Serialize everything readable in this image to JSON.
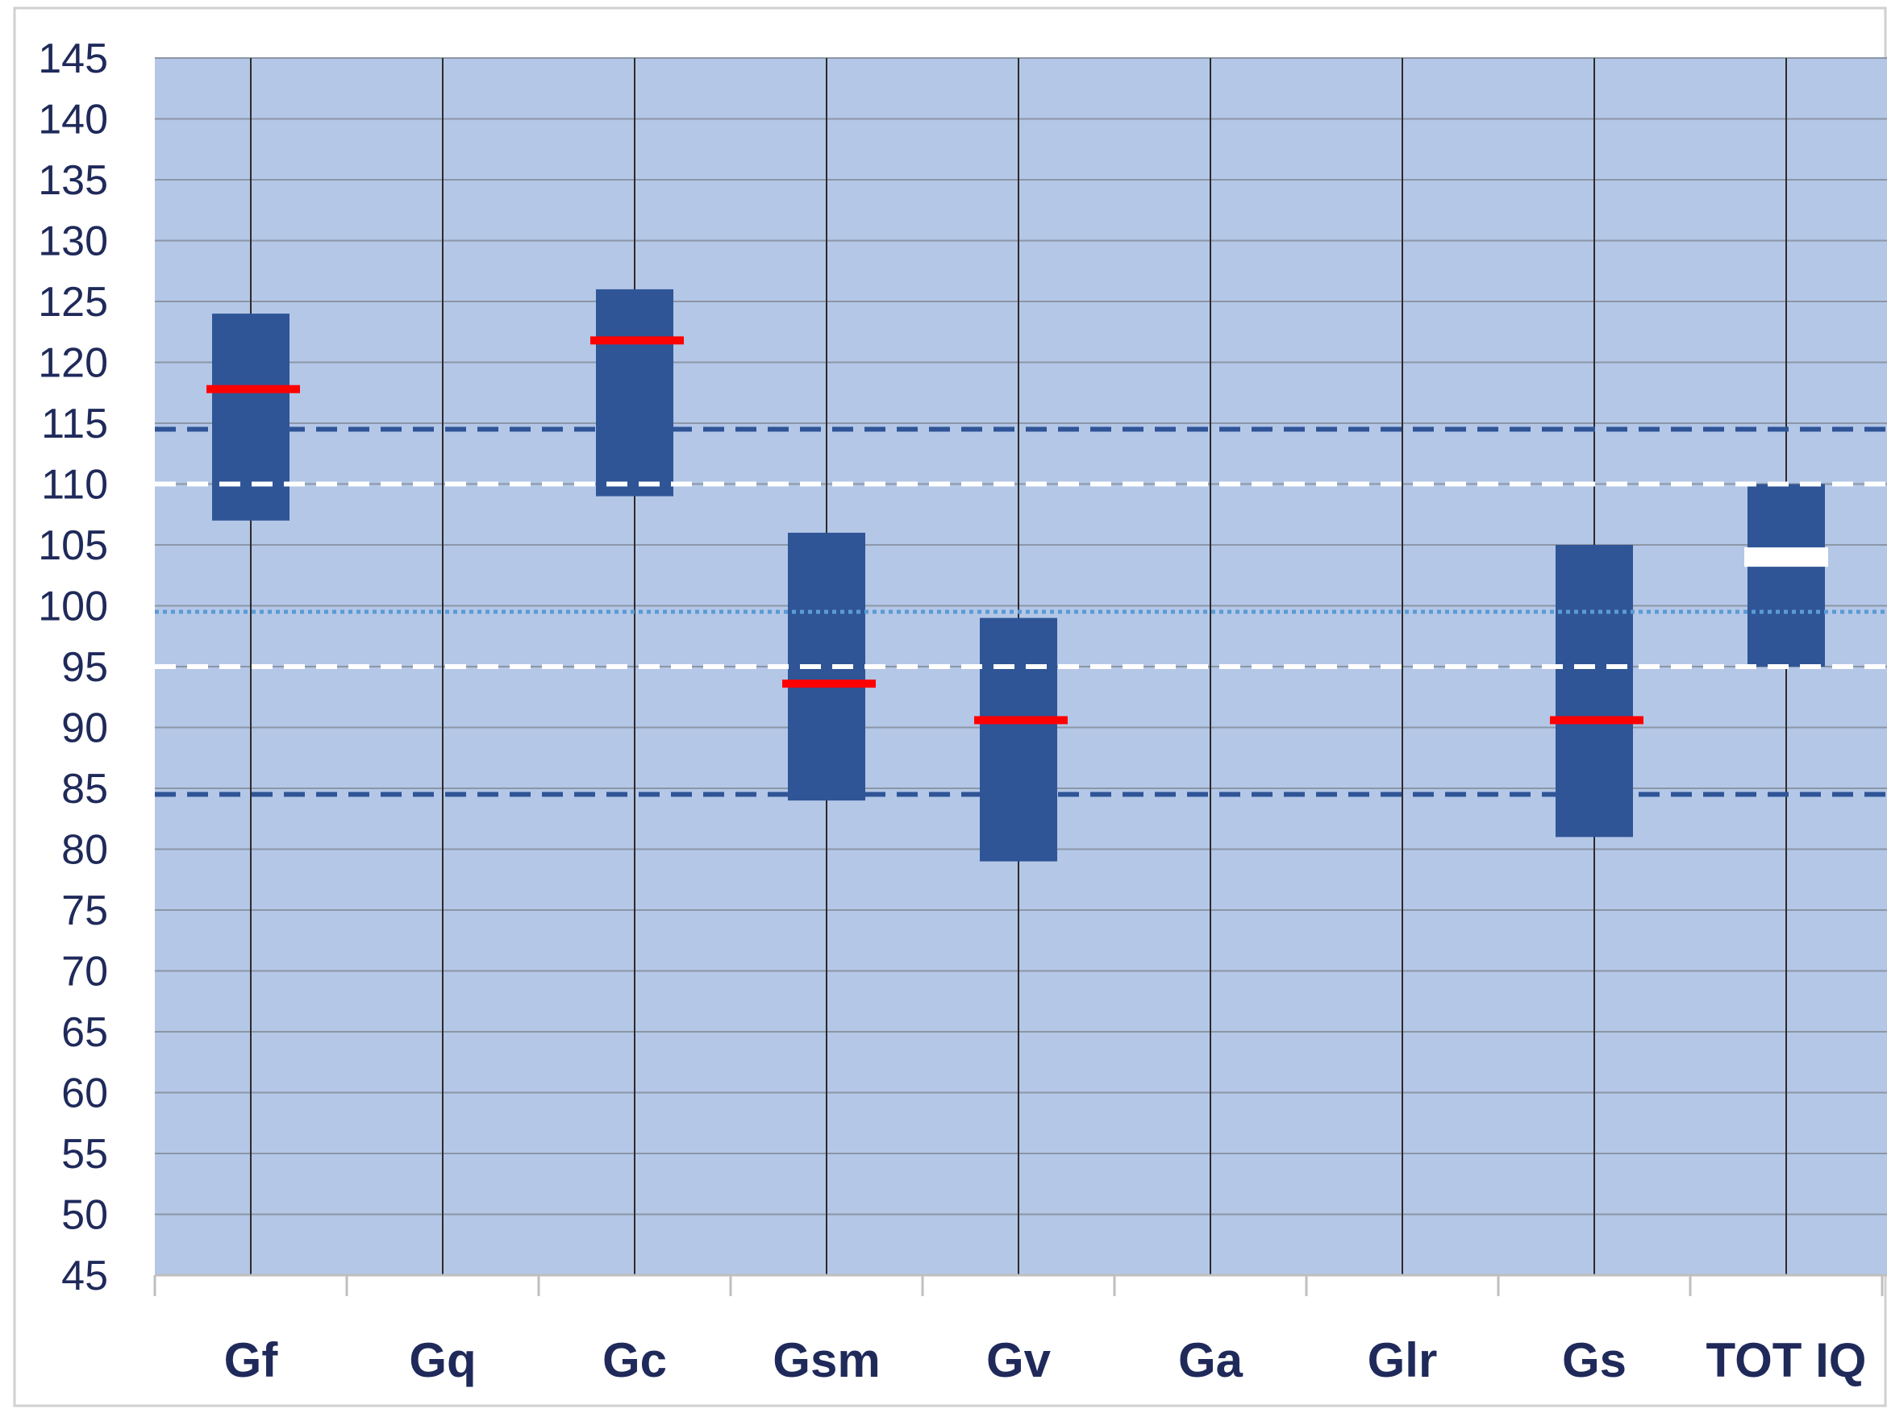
{
  "chart_data": {
    "type": "bar",
    "title": "",
    "xlabel": "",
    "ylabel": "",
    "ylim": [
      45,
      145
    ],
    "yticks": [
      45,
      50,
      55,
      60,
      65,
      70,
      75,
      80,
      85,
      90,
      95,
      100,
      105,
      110,
      115,
      120,
      125,
      130,
      135,
      140,
      145
    ],
    "grid": true,
    "categories": [
      "Gf",
      "Gq",
      "Gc",
      "Gsm",
      "Gv",
      "Ga",
      "Glr",
      "Gs",
      "TOT IQ"
    ],
    "ranges": [
      {
        "category": "Gf",
        "low": 107,
        "high": 124,
        "score": 117.8
      },
      {
        "category": "Gc",
        "low": 109,
        "high": 126,
        "score": 121.8
      },
      {
        "category": "Gsm",
        "low": 84,
        "high": 106,
        "score": 93.6
      },
      {
        "category": "Gv",
        "low": 79,
        "high": 99,
        "score": 90.6
      },
      {
        "category": "Gs",
        "low": 81,
        "high": 105,
        "score": 90.6
      },
      {
        "category": "TOT IQ",
        "low": 95,
        "high": 110,
        "score": 104
      }
    ],
    "reference_lines": [
      {
        "value": 114.5,
        "style": "dashed",
        "color": "#2f5597"
      },
      {
        "value": 110,
        "style": "dashed",
        "color": "#ffffff"
      },
      {
        "value": 99.5,
        "style": "dotted",
        "color": "#5b9bd5"
      },
      {
        "value": 95,
        "style": "dashed",
        "color": "#ffffff"
      },
      {
        "value": 84.5,
        "style": "dashed",
        "color": "#2f5597"
      }
    ],
    "colors": {
      "plot_background": "#b4c7e7",
      "bar": "#2f5597",
      "score_marker": "#ff0000",
      "total_score_marker": "#ffffff",
      "axis_text": "#1f2a5a"
    }
  }
}
